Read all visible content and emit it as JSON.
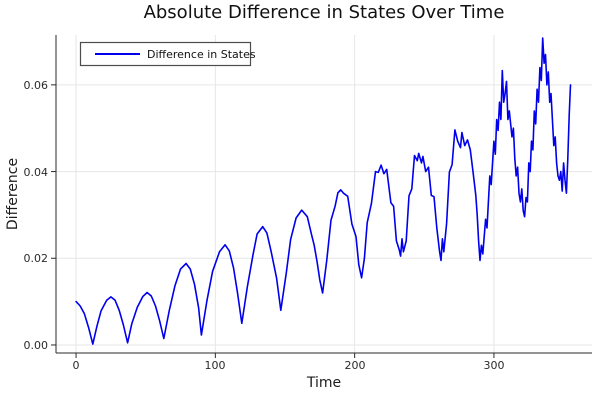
{
  "title": "Absolute Difference in States Over Time",
  "chart_data": {
    "type": "line",
    "title": "Absolute Difference in States Over Time",
    "xlabel": "Time",
    "ylabel": "Difference",
    "grid": true,
    "legend_position": "top-left",
    "background": "#ffffff",
    "line_color": "#0000ee",
    "grid_color": "#e6e6e6",
    "axis_color": "#2a2a2a",
    "xlim": [
      -14.4,
      370.4
    ],
    "ylim": [
      -0.00185,
      0.0715
    ],
    "xticks": [
      0,
      100,
      200,
      300
    ],
    "xtick_labels": [
      "0",
      "100",
      "200",
      "300"
    ],
    "yticks": [
      0.0,
      0.02,
      0.04,
      0.06
    ],
    "ytick_labels": [
      "0.00",
      "0.02",
      "0.04",
      "0.06"
    ],
    "series": [
      {
        "name": "Difference in States",
        "color": "#0000ee",
        "x": [
          0,
          3,
          6,
          9,
          12,
          15,
          18,
          22,
          25,
          28,
          31,
          34,
          37,
          40,
          44,
          48,
          51,
          54,
          57,
          60,
          63,
          67,
          71,
          75,
          79,
          82,
          85,
          88,
          90,
          94,
          98,
          103,
          107,
          110,
          113,
          116,
          119,
          123,
          127,
          130,
          134,
          137,
          140,
          144,
          147,
          151,
          154,
          158,
          162,
          166,
          169,
          171,
          173,
          175,
          177,
          180,
          183,
          186,
          188,
          190,
          192,
          195,
          198,
          201,
          203,
          205,
          207,
          209,
          212,
          215,
          217,
          219,
          221,
          223,
          226,
          228,
          230,
          232,
          233,
          234,
          235,
          237,
          239,
          241,
          243,
          245,
          246,
          248,
          249,
          251,
          253,
          255,
          257,
          259,
          261,
          262,
          263,
          264,
          266,
          268,
          270,
          272,
          274,
          276,
          277,
          279,
          281,
          283,
          285,
          287,
          288,
          289,
          290,
          291,
          292,
          294,
          295,
          297,
          298,
          300,
          301,
          302,
          303,
          304,
          305,
          306,
          307,
          308,
          309,
          310,
          311,
          313,
          314,
          315,
          316,
          317,
          318,
          319,
          320,
          321,
          322,
          323,
          324,
          325,
          326,
          327,
          328,
          329,
          330,
          331,
          332,
          333,
          334,
          335,
          336,
          337,
          338,
          339,
          340,
          341,
          342,
          343,
          344,
          345,
          346,
          347,
          348,
          349,
          350,
          351,
          352,
          353,
          354,
          355
        ],
        "y": [
          0.01,
          0.009,
          0.0072,
          0.004,
          0.0002,
          0.0044,
          0.0079,
          0.0103,
          0.0111,
          0.0103,
          0.008,
          0.0046,
          0.0005,
          0.0049,
          0.0087,
          0.0112,
          0.0121,
          0.0113,
          0.009,
          0.0056,
          0.0015,
          0.0081,
          0.0137,
          0.0175,
          0.0188,
          0.0175,
          0.014,
          0.0086,
          0.0023,
          0.0103,
          0.017,
          0.0215,
          0.0231,
          0.0217,
          0.0178,
          0.0119,
          0.005,
          0.0135,
          0.0208,
          0.0256,
          0.0273,
          0.0258,
          0.0216,
          0.0154,
          0.008,
          0.0168,
          0.0243,
          0.0293,
          0.0311,
          0.0296,
          0.0255,
          0.023,
          0.0193,
          0.015,
          0.012,
          0.0196,
          0.0288,
          0.032,
          0.0351,
          0.0358,
          0.035,
          0.0343,
          0.0279,
          0.025,
          0.0185,
          0.0155,
          0.02,
          0.0282,
          0.0326,
          0.04,
          0.0398,
          0.0415,
          0.0395,
          0.0405,
          0.0328,
          0.032,
          0.024,
          0.022,
          0.0205,
          0.0245,
          0.0215,
          0.024,
          0.0344,
          0.036,
          0.0437,
          0.0425,
          0.0442,
          0.042,
          0.0435,
          0.04,
          0.041,
          0.0345,
          0.0342,
          0.027,
          0.0215,
          0.0195,
          0.0245,
          0.0215,
          0.028,
          0.0399,
          0.0416,
          0.0496,
          0.047,
          0.0455,
          0.049,
          0.046,
          0.0473,
          0.045,
          0.04,
          0.0345,
          0.03,
          0.024,
          0.0195,
          0.023,
          0.021,
          0.029,
          0.027,
          0.039,
          0.037,
          0.047,
          0.044,
          0.052,
          0.0495,
          0.056,
          0.052,
          0.0633,
          0.056,
          0.058,
          0.0608,
          0.052,
          0.054,
          0.048,
          0.05,
          0.043,
          0.039,
          0.041,
          0.035,
          0.033,
          0.036,
          0.031,
          0.0296,
          0.034,
          0.033,
          0.042,
          0.04,
          0.047,
          0.045,
          0.054,
          0.051,
          0.059,
          0.056,
          0.064,
          0.061,
          0.0708,
          0.065,
          0.067,
          0.06,
          0.063,
          0.056,
          0.058,
          0.052,
          0.046,
          0.048,
          0.042,
          0.039,
          0.038,
          0.04,
          0.0355,
          0.042,
          0.038,
          0.035,
          0.043,
          0.053,
          0.06
        ]
      }
    ]
  }
}
